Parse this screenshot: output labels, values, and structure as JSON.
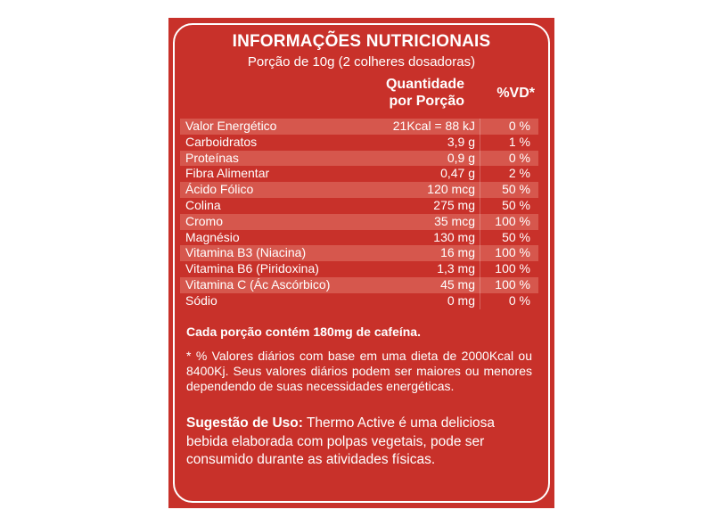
{
  "title": "INFORMAÇÕES NUTRICIONAIS",
  "serving": "Porção de 10g (2 colheres dosadoras)",
  "columns": {
    "quantity_line1": "Quantidade",
    "quantity_line2": "por Porção",
    "dv": "%VD*"
  },
  "rows": [
    {
      "name": "Valor Energético",
      "qty": "21Kcal = 88 kJ",
      "dv": "0 %"
    },
    {
      "name": "Carboidratos",
      "qty": "3,9 g",
      "dv": "1 %"
    },
    {
      "name": "Proteínas",
      "qty": "0,9 g",
      "dv": "0 %"
    },
    {
      "name": "Fibra Alimentar",
      "qty": "0,47 g",
      "dv": "2 %"
    },
    {
      "name": "Ácido Fólico",
      "qty": "120 mcg",
      "dv": "50 %"
    },
    {
      "name": "Colina",
      "qty": "275 mg",
      "dv": "50 %"
    },
    {
      "name": "Cromo",
      "qty": "35 mcg",
      "dv": "100 %"
    },
    {
      "name": "Magnésio",
      "qty": "130 mg",
      "dv": "50 %"
    },
    {
      "name": "Vitamina B3 (Niacina)",
      "qty": "16 mg",
      "dv": "100 %"
    },
    {
      "name": "Vitamina B6 (Piridoxina)",
      "qty": "1,3 mg",
      "dv": "100 %"
    },
    {
      "name": "Vitamina C (Ác Ascórbico)",
      "qty": "45 mg",
      "dv": "100 %"
    },
    {
      "name": "Sódio",
      "qty": "0 mg",
      "dv": "0 %"
    }
  ],
  "caffeine_note": "Cada porção contém 180mg de cafeína.",
  "footnote": "* % Valores diários com base em uma dieta de 2000Kcal ou 8400Kj. Seus valores diários podem ser maiores ou menores dependendo de suas necessidades energéticas.",
  "usage": {
    "label": "Sugestão de Uso:",
    "text": " Thermo Active é uma deliciosa bebida elaborada com polpas vegetais, pode ser consumido durante as atividades físicas."
  },
  "colors": {
    "background": "#c8312a",
    "shaded_row": "#d6574d",
    "text": "#ffffff"
  }
}
